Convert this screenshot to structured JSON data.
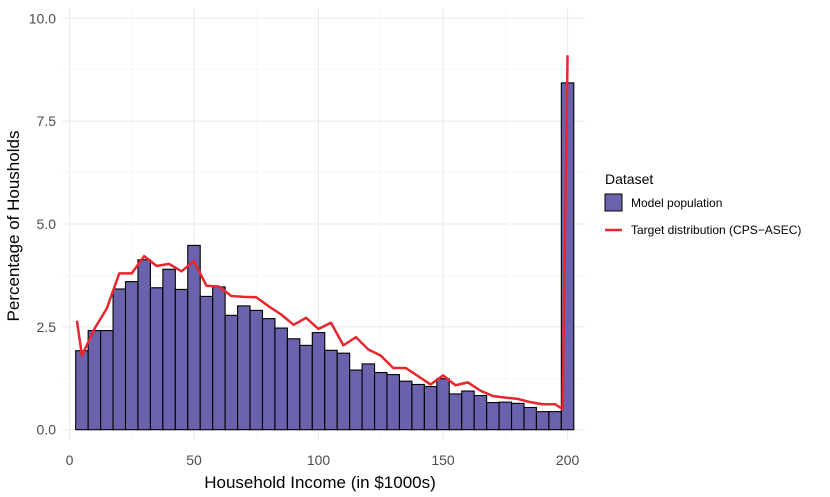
{
  "chart_data": {
    "type": "bar",
    "xlabel": "Household Income (in $1000s)",
    "ylabel": "Percentage of Housholds",
    "xlim": [
      -3,
      207
    ],
    "ylim": [
      -0.25,
      10.25
    ],
    "x_ticks": [
      0,
      50,
      100,
      150,
      200
    ],
    "y_ticks": [
      0.0,
      2.5,
      5.0,
      7.5,
      10.0
    ],
    "y_tick_labels": [
      "0.0",
      "2.5",
      "5.0",
      "7.5",
      "10.0"
    ],
    "grid": true,
    "legend_position": "right",
    "legend_title": "Dataset",
    "bin_width": 5,
    "bin_centers": [
      5,
      10,
      15,
      20,
      25,
      30,
      35,
      40,
      45,
      50,
      55,
      60,
      65,
      70,
      75,
      80,
      85,
      90,
      95,
      100,
      105,
      110,
      115,
      120,
      125,
      130,
      135,
      140,
      145,
      150,
      155,
      160,
      165,
      170,
      175,
      180,
      185,
      190,
      195,
      200
    ],
    "series": [
      {
        "name": "Model population",
        "kind": "bar",
        "color": "#6b62ad",
        "values": [
          1.92,
          2.41,
          2.41,
          3.42,
          3.6,
          4.13,
          3.45,
          3.9,
          3.41,
          4.48,
          3.24,
          3.47,
          2.78,
          3.01,
          2.9,
          2.7,
          2.47,
          2.21,
          2.05,
          2.36,
          1.93,
          1.86,
          1.45,
          1.6,
          1.39,
          1.34,
          1.18,
          1.1,
          1.05,
          1.24,
          0.87,
          0.94,
          0.83,
          0.66,
          0.67,
          0.64,
          0.54,
          0.44,
          0.44,
          8.43
        ]
      },
      {
        "name": "Target distribution (CPS−ASEC)",
        "kind": "line",
        "color": "#e8262e",
        "x": [
          3,
          5,
          10,
          15,
          20,
          25,
          30,
          35,
          40,
          45,
          50,
          55,
          60,
          65,
          70,
          75,
          80,
          85,
          90,
          95,
          100,
          105,
          110,
          115,
          120,
          125,
          130,
          135,
          140,
          145,
          150,
          155,
          160,
          165,
          170,
          175,
          180,
          185,
          190,
          195,
          198,
          200
        ],
        "values": [
          2.65,
          1.8,
          2.45,
          2.95,
          3.8,
          3.8,
          4.22,
          3.98,
          4.03,
          3.85,
          4.1,
          3.5,
          3.48,
          3.25,
          3.23,
          3.22,
          3.0,
          2.8,
          2.55,
          2.72,
          2.45,
          2.6,
          2.05,
          2.25,
          1.95,
          1.8,
          1.5,
          1.5,
          1.3,
          1.1,
          1.32,
          1.08,
          1.15,
          0.95,
          0.82,
          0.78,
          0.75,
          0.67,
          0.62,
          0.62,
          0.5,
          9.1
        ]
      }
    ]
  }
}
